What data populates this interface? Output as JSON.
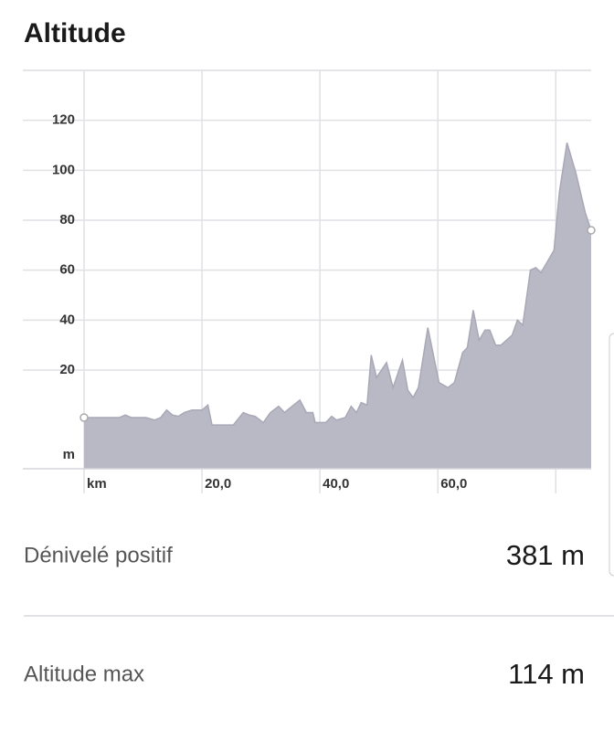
{
  "header": {
    "title": "Altitude"
  },
  "chart_data": {
    "type": "area",
    "color": "#b9b8c5",
    "line_color": "#a9a8b6",
    "y_label": "m",
    "x": [
      0,
      1,
      6,
      7,
      8,
      10.5,
      12,
      13,
      14,
      15,
      16,
      17,
      18.3,
      20,
      21,
      21.7,
      25.3,
      27,
      28,
      29,
      30.4,
      31.6,
      33,
      34,
      35,
      36.6,
      37.7,
      38.8,
      39.2,
      41,
      42,
      42.8,
      44.3,
      45.3,
      46.2,
      47,
      48,
      48.7,
      49.6,
      51.3,
      52.4,
      54,
      54.9,
      55.8,
      56.7,
      58.3,
      60.2,
      61.7,
      62.8,
      64.2,
      65,
      66,
      67,
      68,
      68.8,
      69.8,
      70.7,
      72.6,
      73.5,
      74.4,
      75.7,
      76.6,
      77.5,
      79.7,
      80.6,
      81.9,
      83.4,
      85,
      86
    ],
    "values": [
      1,
      1,
      1,
      2,
      1,
      1,
      0,
      1,
      4,
      2,
      1.5,
      3,
      4,
      4,
      6,
      -2,
      -2,
      3,
      2,
      1.5,
      -1,
      3,
      5.5,
      3,
      5,
      8,
      3,
      3,
      -1,
      -1,
      1.5,
      0,
      1,
      5.5,
      3,
      7,
      6,
      26,
      17,
      23,
      13,
      24,
      12,
      9,
      13,
      37,
      15,
      13,
      15,
      27,
      29,
      44,
      32,
      36,
      36,
      30,
      30,
      34,
      40,
      38,
      60,
      61,
      59,
      68,
      91,
      111,
      99,
      83,
      76
    ],
    "xlim": [
      0,
      86
    ],
    "ylim": [
      -19.5,
      140
    ],
    "xticks": [
      {
        "value": 0,
        "label": "km"
      },
      {
        "value": 20,
        "label": "20,0"
      },
      {
        "value": 40,
        "label": "40,0"
      },
      {
        "value": 60,
        "label": "60,0"
      },
      {
        "value": 80,
        "label": null
      }
    ],
    "yticks": [
      20,
      40,
      60,
      80,
      100,
      120
    ],
    "grid": true
  },
  "stats": [
    {
      "label": "Dénivelé positif",
      "value": "381 m"
    },
    {
      "label": "Altitude max",
      "value": "114 m"
    }
  ]
}
